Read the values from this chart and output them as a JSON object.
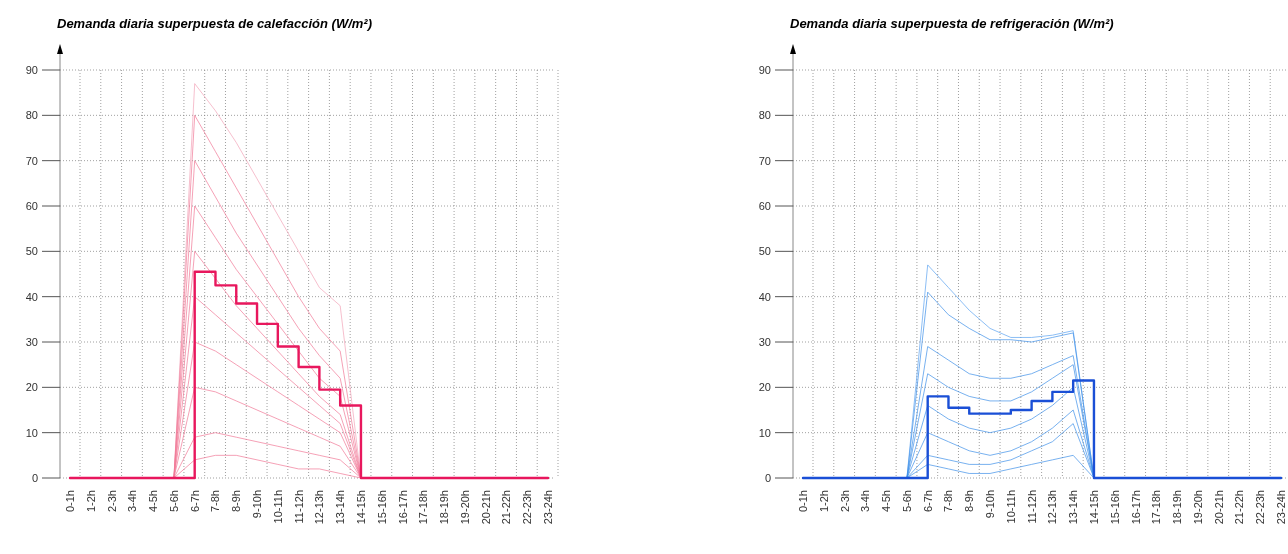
{
  "chart_data": [
    {
      "type": "line",
      "title": "Demanda diaria superpuesta de calefacción (W/m²)",
      "categories": [
        "0-1h",
        "1-2h",
        "2-3h",
        "3-4h",
        "4-5h",
        "5-6h",
        "6-7h",
        "7-8h",
        "8-9h",
        "9-10h",
        "10-11h",
        "11-12h",
        "12-13h",
        "13-14h",
        "14-15h",
        "15-16h",
        "16-17h",
        "17-18h",
        "18-19h",
        "19-20h",
        "20-21h",
        "21-22h",
        "22-23h",
        "23-24h"
      ],
      "ylim": [
        0,
        90
      ],
      "yticks": [
        0,
        10,
        20,
        30,
        40,
        50,
        60,
        70,
        80,
        90
      ],
      "grid": true,
      "series": [
        {
          "color": "#f2a3b8",
          "values": [
            null,
            null,
            null,
            null,
            null,
            0,
            87,
            81,
            74,
            66,
            58,
            50,
            42,
            38,
            0,
            null,
            null,
            null,
            null,
            null,
            null,
            null,
            null,
            null
          ]
        },
        {
          "color": "#f07896",
          "values": [
            null,
            null,
            null,
            null,
            null,
            0,
            80,
            72,
            64,
            56,
            48,
            40,
            33,
            28,
            0,
            null,
            null,
            null,
            null,
            null,
            null,
            null,
            null,
            null
          ]
        },
        {
          "color": "#f07896",
          "values": [
            null,
            null,
            null,
            null,
            null,
            0,
            70,
            62,
            54,
            47,
            40,
            33,
            27,
            22,
            0,
            null,
            null,
            null,
            null,
            null,
            null,
            null,
            null,
            null
          ]
        },
        {
          "color": "#f07896",
          "values": [
            null,
            null,
            null,
            null,
            null,
            0,
            60,
            53,
            46,
            40,
            34,
            28,
            22,
            18,
            0,
            null,
            null,
            null,
            null,
            null,
            null,
            null,
            null,
            null
          ]
        },
        {
          "color": "#f07896",
          "values": [
            null,
            null,
            null,
            null,
            null,
            0,
            50,
            44,
            38,
            33,
            28,
            23,
            18,
            14,
            0,
            null,
            null,
            null,
            null,
            null,
            null,
            null,
            null,
            null
          ]
        },
        {
          "color": "#f07896",
          "values": [
            null,
            null,
            null,
            null,
            null,
            0,
            40,
            36,
            32,
            28,
            24,
            20,
            16,
            12,
            0,
            null,
            null,
            null,
            null,
            null,
            null,
            null,
            null,
            null
          ]
        },
        {
          "color": "#f07896",
          "values": [
            null,
            null,
            null,
            null,
            null,
            0,
            30,
            28,
            25,
            22,
            19,
            16,
            13,
            10,
            0,
            null,
            null,
            null,
            null,
            null,
            null,
            null,
            null,
            null
          ]
        },
        {
          "color": "#f07896",
          "values": [
            null,
            null,
            null,
            null,
            null,
            0,
            20,
            19,
            17,
            15,
            13,
            11,
            9,
            7,
            0,
            null,
            null,
            null,
            null,
            null,
            null,
            null,
            null,
            null
          ]
        },
        {
          "color": "#f07896",
          "values": [
            null,
            null,
            null,
            null,
            null,
            0,
            9,
            10,
            9,
            8,
            7,
            6,
            5,
            4,
            0,
            null,
            null,
            null,
            null,
            null,
            null,
            null,
            null,
            null
          ]
        },
        {
          "color": "#f07896",
          "values": [
            null,
            null,
            null,
            null,
            null,
            0,
            4,
            5,
            5,
            4,
            3,
            2,
            2,
            1,
            0,
            null,
            null,
            null,
            null,
            null,
            null,
            null,
            null,
            null
          ]
        },
        {
          "type": "step",
          "color": "#e8175d",
          "values": [
            0,
            0,
            0,
            0,
            0,
            0,
            45.5,
            42.5,
            38.5,
            34,
            29,
            24.5,
            19.5,
            16,
            0,
            0,
            0,
            0,
            0,
            0,
            0,
            0,
            0,
            0
          ]
        }
      ]
    },
    {
      "type": "line",
      "title": "Demanda diaria superpuesta de refrigeración (W/m²)",
      "categories": [
        "0-1h",
        "1-2h",
        "2-3h",
        "3-4h",
        "4-5h",
        "5-6h",
        "6-7h",
        "7-8h",
        "8-9h",
        "9-10h",
        "10-11h",
        "11-12h",
        "12-13h",
        "13-14h",
        "14-15h",
        "15-16h",
        "16-17h",
        "17-18h",
        "18-19h",
        "19-20h",
        "20-21h",
        "21-22h",
        "22-23h",
        "23-24h"
      ],
      "ylim": [
        0,
        90
      ],
      "yticks": [
        0,
        10,
        20,
        30,
        40,
        50,
        60,
        70,
        80,
        90
      ],
      "grid": true,
      "series": [
        {
          "color": "#5aa2f0",
          "values": [
            null,
            null,
            null,
            null,
            null,
            0,
            47,
            42,
            37,
            33,
            31,
            31,
            31.5,
            32.5,
            0,
            null,
            null,
            null,
            null,
            null,
            null,
            null,
            null,
            null
          ]
        },
        {
          "color": "#3d8fe8",
          "values": [
            null,
            null,
            null,
            null,
            null,
            0,
            41,
            36,
            33,
            30.5,
            30.5,
            30,
            31,
            32,
            0,
            null,
            null,
            null,
            null,
            null,
            null,
            null,
            null,
            null
          ]
        },
        {
          "color": "#3d8fe8",
          "values": [
            null,
            null,
            null,
            null,
            null,
            0,
            29,
            26,
            23,
            22,
            22,
            23,
            25,
            27,
            0,
            null,
            null,
            null,
            null,
            null,
            null,
            null,
            null,
            null
          ]
        },
        {
          "color": "#3d8fe8",
          "values": [
            null,
            null,
            null,
            null,
            null,
            0,
            23,
            20,
            18,
            17,
            17,
            19,
            22,
            25,
            0,
            null,
            null,
            null,
            null,
            null,
            null,
            null,
            null,
            null
          ]
        },
        {
          "color": "#3d8fe8",
          "values": [
            null,
            null,
            null,
            null,
            null,
            0,
            16,
            13,
            11,
            10,
            11,
            13,
            16,
            20,
            0,
            null,
            null,
            null,
            null,
            null,
            null,
            null,
            null,
            null
          ]
        },
        {
          "color": "#3d8fe8",
          "values": [
            null,
            null,
            null,
            null,
            null,
            0,
            10,
            8,
            6,
            5,
            6,
            8,
            11,
            15,
            0,
            null,
            null,
            null,
            null,
            null,
            null,
            null,
            null,
            null
          ]
        },
        {
          "color": "#3d8fe8",
          "values": [
            null,
            null,
            null,
            null,
            null,
            0,
            5,
            4,
            3,
            3,
            4,
            6,
            8,
            12,
            0,
            null,
            null,
            null,
            null,
            null,
            null,
            null,
            null,
            null
          ]
        },
        {
          "color": "#3d8fe8",
          "values": [
            null,
            null,
            null,
            null,
            null,
            0,
            3,
            2,
            1,
            1,
            2,
            3,
            4,
            5,
            0,
            null,
            null,
            null,
            null,
            null,
            null,
            null,
            null,
            null
          ]
        },
        {
          "type": "step",
          "color": "#1a4fd6",
          "values": [
            0,
            0,
            0,
            0,
            0,
            0,
            18,
            15.5,
            14.2,
            14.2,
            15,
            17,
            19,
            21.5,
            0,
            0,
            0,
            0,
            0,
            0,
            0,
            0,
            0,
            0
          ]
        }
      ]
    }
  ]
}
